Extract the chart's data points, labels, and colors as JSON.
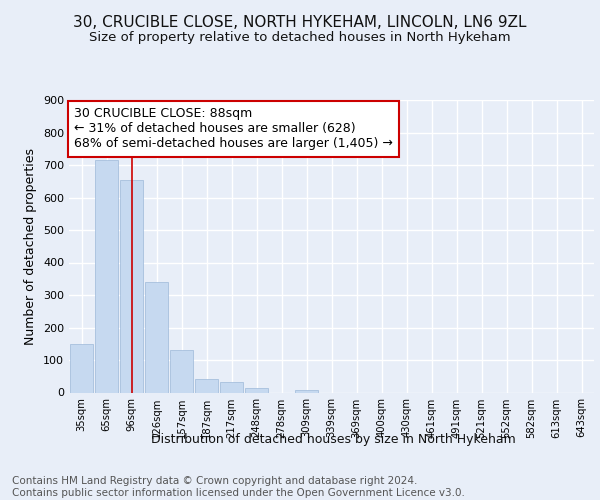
{
  "title1": "30, CRUCIBLE CLOSE, NORTH HYKEHAM, LINCOLN, LN6 9ZL",
  "title2": "Size of property relative to detached houses in North Hykeham",
  "xlabel": "Distribution of detached houses by size in North Hykeham",
  "ylabel": "Number of detached properties",
  "bar_labels": [
    "35sqm",
    "65sqm",
    "96sqm",
    "126sqm",
    "157sqm",
    "187sqm",
    "217sqm",
    "248sqm",
    "278sqm",
    "309sqm",
    "339sqm",
    "369sqm",
    "400sqm",
    "430sqm",
    "461sqm",
    "491sqm",
    "521sqm",
    "552sqm",
    "582sqm",
    "613sqm",
    "643sqm"
  ],
  "bar_values": [
    150,
    715,
    655,
    340,
    130,
    42,
    32,
    13,
    0,
    8,
    0,
    0,
    0,
    0,
    0,
    0,
    0,
    0,
    0,
    0,
    0
  ],
  "bar_color": "#c6d9f0",
  "bar_edge_color": "#9db8d9",
  "vline_x": 2,
  "vline_color": "#cc0000",
  "annotation_text": "30 CRUCIBLE CLOSE: 88sqm\n← 31% of detached houses are smaller (628)\n68% of semi-detached houses are larger (1,405) →",
  "annotation_box_color": "#ffffff",
  "annotation_box_edge": "#cc0000",
  "ylim": [
    0,
    900
  ],
  "yticks": [
    0,
    100,
    200,
    300,
    400,
    500,
    600,
    700,
    800,
    900
  ],
  "footer": "Contains HM Land Registry data © Crown copyright and database right 2024.\nContains public sector information licensed under the Open Government Licence v3.0.",
  "bg_color": "#e8eef8",
  "plot_bg_color": "#e8eef8",
  "grid_color": "#ffffff",
  "title1_fontsize": 11,
  "title2_fontsize": 9.5,
  "annotation_fontsize": 9,
  "xlabel_fontsize": 9,
  "footer_fontsize": 7.5,
  "ylabel_fontsize": 9
}
